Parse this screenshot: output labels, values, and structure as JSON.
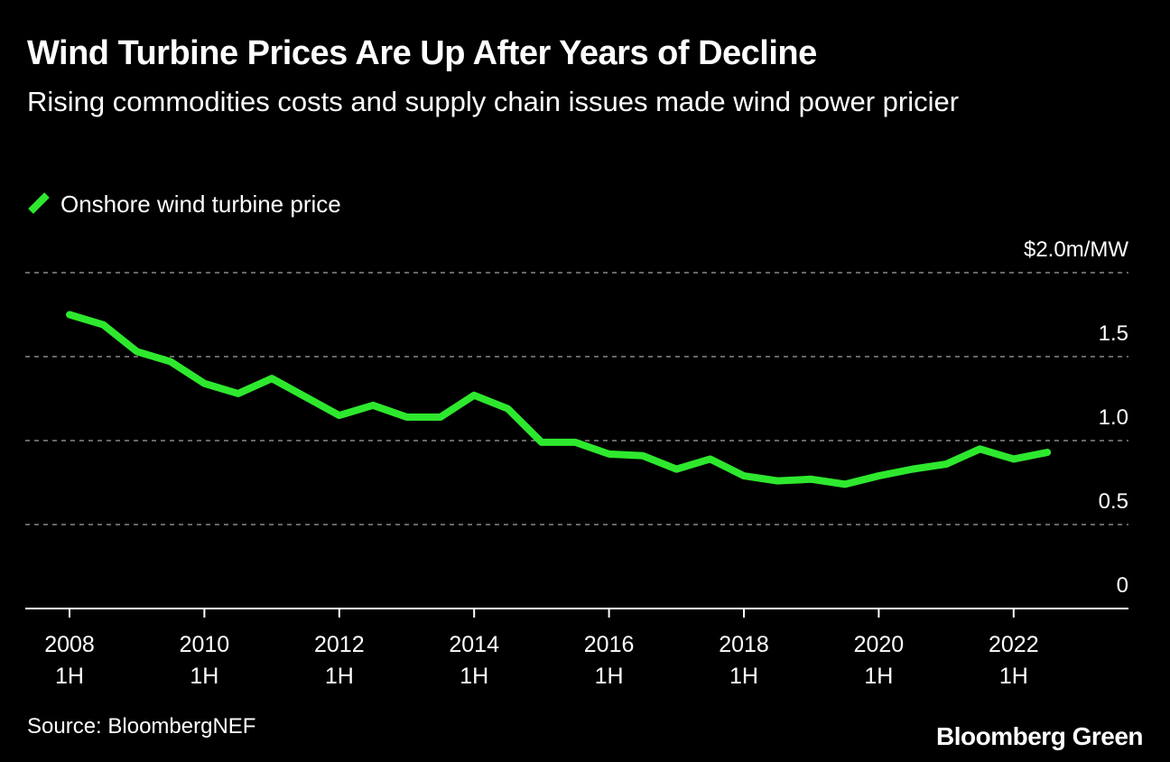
{
  "title": "Wind Turbine Prices Are Up After Years of Decline",
  "subtitle": "Rising commodities costs and supply chain issues made wind power pricier",
  "source": "Source: BloombergNEF",
  "brand": "Bloomberg Green",
  "colors": {
    "background": "#000000",
    "line": "#2ee82e",
    "grid": "#888888",
    "text": "#ffffff"
  },
  "chart_data": {
    "type": "line",
    "ylim": [
      0,
      2.0
    ],
    "grid": true,
    "legend_position": "top-left",
    "y_ticks": [
      {
        "value": 0,
        "label": "0"
      },
      {
        "value": 0.5,
        "label": "0.5"
      },
      {
        "value": 1.0,
        "label": "1.0"
      },
      {
        "value": 1.5,
        "label": "1.5"
      },
      {
        "value": 2.0,
        "label": "$2.0m/MW"
      }
    ],
    "x_ticks": [
      {
        "index": 0,
        "year": "2008",
        "half": "1H"
      },
      {
        "index": 4,
        "year": "2010",
        "half": "1H"
      },
      {
        "index": 8,
        "year": "2012",
        "half": "1H"
      },
      {
        "index": 12,
        "year": "2014",
        "half": "1H"
      },
      {
        "index": 16,
        "year": "2016",
        "half": "1H"
      },
      {
        "index": 20,
        "year": "2018",
        "half": "1H"
      },
      {
        "index": 24,
        "year": "2020",
        "half": "1H"
      },
      {
        "index": 28,
        "year": "2022",
        "half": "1H"
      }
    ],
    "x": [
      "2008 1H",
      "2008 2H",
      "2009 1H",
      "2009 2H",
      "2010 1H",
      "2010 2H",
      "2011 1H",
      "2011 2H",
      "2012 1H",
      "2012 2H",
      "2013 1H",
      "2013 2H",
      "2014 1H",
      "2014 2H",
      "2015 1H",
      "2015 2H",
      "2016 1H",
      "2016 2H",
      "2017 1H",
      "2017 2H",
      "2018 1H",
      "2018 2H",
      "2019 1H",
      "2019 2H",
      "2020 1H",
      "2020 2H",
      "2021 1H",
      "2021 2H",
      "2022 1H",
      "2022 2H"
    ],
    "series": [
      {
        "name": "Onshore wind turbine price",
        "values": [
          1.75,
          1.69,
          1.53,
          1.47,
          1.34,
          1.28,
          1.37,
          1.26,
          1.15,
          1.21,
          1.14,
          1.14,
          1.27,
          1.19,
          0.99,
          0.99,
          0.92,
          0.91,
          0.83,
          0.89,
          0.79,
          0.76,
          0.77,
          0.74,
          0.79,
          0.83,
          0.86,
          0.95,
          0.89,
          0.93
        ]
      }
    ]
  }
}
